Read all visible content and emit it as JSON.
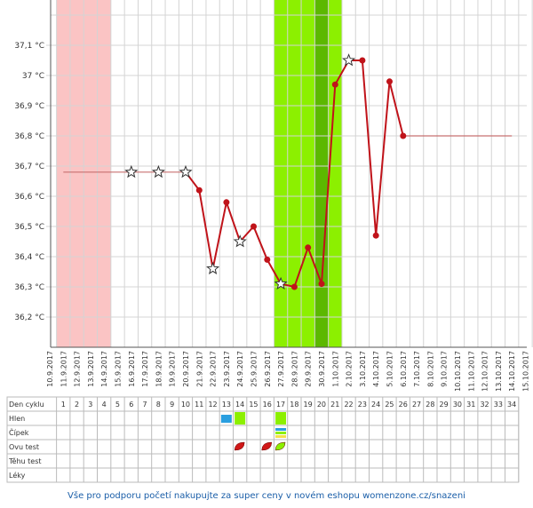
{
  "chart_data": {
    "type": "line",
    "x": [
      "10.9.2017",
      "11.9.2017",
      "12.9.2017",
      "13.9.2017",
      "14.9.2017",
      "15.9.2017",
      "16.9.2017",
      "17.9.2017",
      "18.9.2017",
      "19.9.2017",
      "20.9.2017",
      "21.9.2017",
      "22.9.2017",
      "23.9.2017",
      "24.9.2017",
      "25.9.2017",
      "26.9.2017",
      "27.9.2017",
      "28.9.2017",
      "29.9.2017",
      "30.9.2017",
      "1.10.2017",
      "2.10.2017",
      "3.10.2017",
      "4.10.2017",
      "5.10.2017",
      "6.10.2017",
      "7.10.2017",
      "8.10.2017",
      "9.10.2017",
      "10.10.2017",
      "11.10.2017",
      "12.10.2017",
      "13.10.2017",
      "14.10.2017",
      "15.10.2017"
    ],
    "series": [
      {
        "color": "#c0131a",
        "values": [
          null,
          null,
          null,
          null,
          null,
          null,
          36.68,
          null,
          36.68,
          null,
          36.68,
          36.62,
          36.36,
          36.58,
          36.45,
          36.5,
          36.39,
          36.31,
          36.3,
          36.43,
          36.31,
          36.97,
          37.05,
          37.05,
          36.47,
          36.98,
          36.8,
          null,
          null,
          null,
          null,
          null,
          null,
          null,
          null,
          null
        ],
        "markers": [
          null,
          null,
          null,
          null,
          null,
          null,
          "star",
          null,
          "star",
          null,
          "star",
          "dot",
          "star",
          "dot",
          "star",
          "dot",
          "dot",
          "star",
          "dot",
          "dot",
          "dot",
          "dot",
          "star",
          "dot",
          "dot",
          "dot",
          "dot",
          null,
          null,
          null,
          null,
          null,
          null,
          null,
          null,
          null
        ]
      }
    ],
    "levels": [
      {
        "start": "11.9.2017",
        "end": "20.9.2017",
        "value": 36.68,
        "color": "#c87070"
      },
      {
        "start": "6.10.2017",
        "end": "14.10.2017",
        "value": 36.8,
        "color": "#c87070"
      }
    ],
    "bands": [
      {
        "start": "11.9.2017",
        "end": "14.9.2017",
        "color": "#fbc4c4"
      },
      {
        "start": "27.9.2017",
        "end": "1.10.2017",
        "color": "#8cf000"
      },
      {
        "start": "30.9.2017",
        "end": "30.9.2017",
        "color": "#5cb800"
      }
    ],
    "ylim": [
      36.1,
      37.2
    ],
    "yticks": [
      {
        "value": 36.2,
        "label": "36,2 °C"
      },
      {
        "value": 36.3,
        "label": "36,3 °C"
      },
      {
        "value": 36.4,
        "label": "36,4 °C"
      },
      {
        "value": 36.5,
        "label": "36,5 °C"
      },
      {
        "value": 36.6,
        "label": "36,6 °C"
      },
      {
        "value": 36.7,
        "label": "36,7 °C"
      },
      {
        "value": 36.8,
        "label": "36,8 °C"
      },
      {
        "value": 36.9,
        "label": "36,9 °C"
      },
      {
        "value": 37.0,
        "label": "37 °C"
      },
      {
        "value": 37.1,
        "label": "37,1 °C"
      }
    ],
    "grid": true
  },
  "table": {
    "days": [
      1,
      2,
      3,
      4,
      5,
      6,
      7,
      8,
      9,
      10,
      11,
      12,
      13,
      14,
      15,
      16,
      17,
      18,
      19,
      20,
      21,
      22,
      23,
      24,
      25,
      26,
      27,
      28,
      29,
      30,
      31,
      32,
      33,
      34
    ],
    "rows": [
      {
        "label": "Den cyklu"
      },
      {
        "label": "Hlen",
        "marks": [
          {
            "day": 13,
            "color": "#2a9fe0",
            "shape": "box"
          },
          {
            "day": 14,
            "color": "#8cf000",
            "shape": "box"
          },
          {
            "day": 17,
            "color": "#8cf000",
            "shape": "box"
          }
        ]
      },
      {
        "label": "Čípek",
        "marks": [
          {
            "day": 17,
            "color": "#2a9fe0",
            "shape": "stripes"
          }
        ]
      },
      {
        "label": "Ovu test",
        "marks": [
          {
            "day": 14,
            "color": "#d01818",
            "shape": "leaf"
          },
          {
            "day": 16,
            "color": "#d01818",
            "shape": "leaf"
          },
          {
            "day": 17,
            "color": "#8cf000",
            "shape": "leaf"
          }
        ]
      },
      {
        "label": "Těhu test"
      },
      {
        "label": "Léky"
      }
    ]
  },
  "footer": "Vše pro podporu početí nakupujte za super ceny v novém eshopu womenzone.cz/snazeni"
}
